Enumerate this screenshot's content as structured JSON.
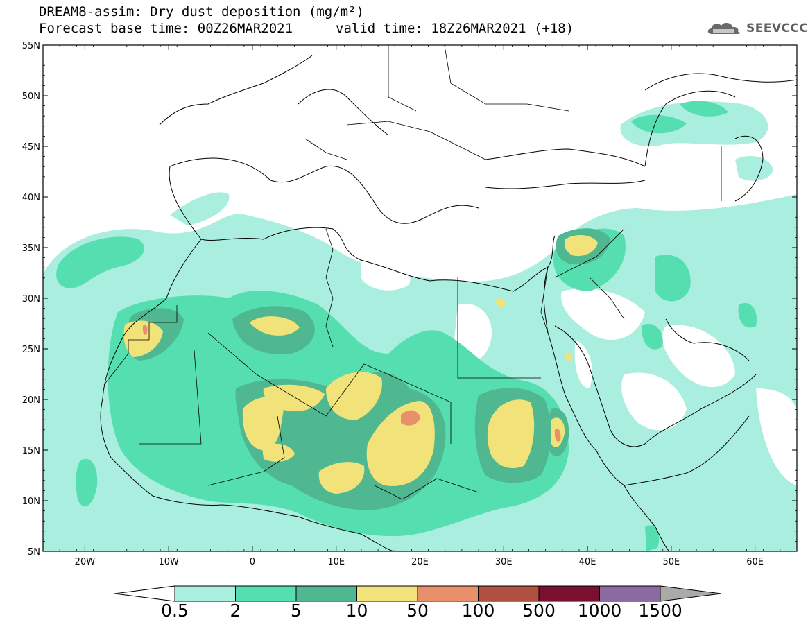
{
  "header": {
    "title": "DREAM8-assim: Dry dust deposition (mg/m²)",
    "base_time": "Forecast base time: 00Z26MAR2021",
    "valid_time": "valid time: 18Z26MAR2021 (+18)",
    "logo_text": "SEEVCCC"
  },
  "map": {
    "lat_labels": [
      "55N",
      "50N",
      "45N",
      "40N",
      "35N",
      "30N",
      "25N",
      "20N",
      "15N",
      "10N",
      "5N"
    ],
    "lon_labels": [
      "20W",
      "10W",
      "0",
      "10E",
      "20E",
      "30E",
      "40E",
      "50E",
      "60E"
    ],
    "lat_values": [
      55,
      50,
      45,
      40,
      35,
      30,
      25,
      20,
      15,
      10,
      5
    ],
    "lon_values": [
      -20,
      -10,
      0,
      10,
      20,
      30,
      40,
      50,
      60
    ],
    "extent": {
      "lon_min": -25,
      "lon_max": 65,
      "lat_min": 5,
      "lat_max": 55
    }
  },
  "colorbar": {
    "labels": [
      "0.5",
      "2",
      "5",
      "10",
      "50",
      "100",
      "500",
      "1000",
      "1500"
    ],
    "colors": [
      "#aaeee0",
      "#55dfb0",
      "#50b890",
      "#f2e27a",
      "#e8906a",
      "#b05040",
      "#7a1030",
      "#8a6aa0"
    ],
    "under_color": "#ffffff",
    "over_color": "#aaaaaa"
  },
  "colors": {
    "level1": "#aaeee0",
    "level2": "#55dfb0",
    "level3": "#50b890",
    "level4": "#f2e27a",
    "level5": "#e8906a"
  }
}
